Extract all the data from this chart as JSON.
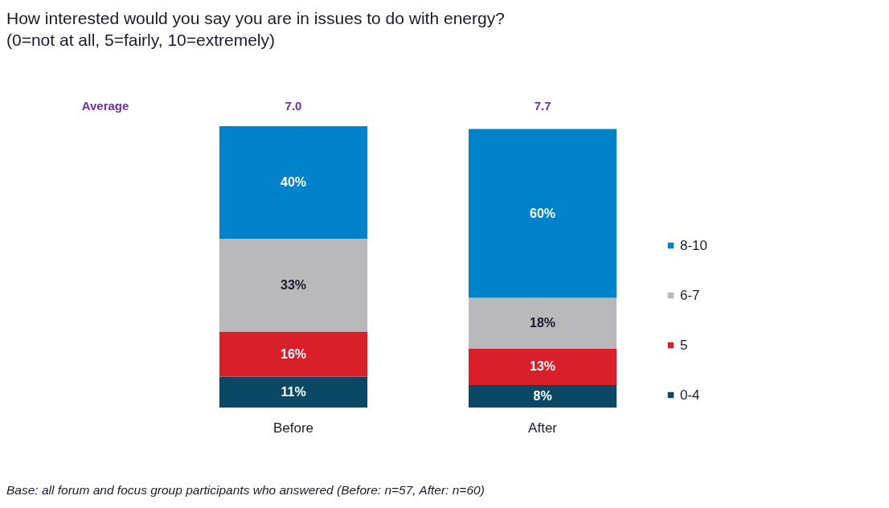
{
  "chart_data": {
    "type": "bar",
    "title": "How interested would you say you are in issues to do with energy?",
    "subtitle": "(0=not at all, 5=fairly, 10=extremely)",
    "categories": [
      "Before",
      "After"
    ],
    "stacked": true,
    "series": [
      {
        "name": "0-4",
        "color": "#0b4866",
        "values": [
          11,
          8
        ],
        "value_labels": [
          "11%",
          "8%"
        ]
      },
      {
        "name": "5",
        "color": "#d81f2a",
        "values": [
          16,
          13
        ],
        "value_labels": [
          "16%",
          "13%"
        ]
      },
      {
        "name": "6-7",
        "color": "#b9b8ba",
        "values": [
          33,
          18
        ],
        "value_labels": [
          "33%",
          "18%"
        ]
      },
      {
        "name": "8-10",
        "color": "#0082ca",
        "values": [
          40,
          60
        ],
        "value_labels": [
          "40%",
          "60%"
        ]
      }
    ],
    "legend": "right",
    "annotations": [
      "Average",
      "7.0",
      "7.7",
      "Base: all forum and focus group participants who answered (Before: n=57, After: n=60)"
    ]
  }
}
